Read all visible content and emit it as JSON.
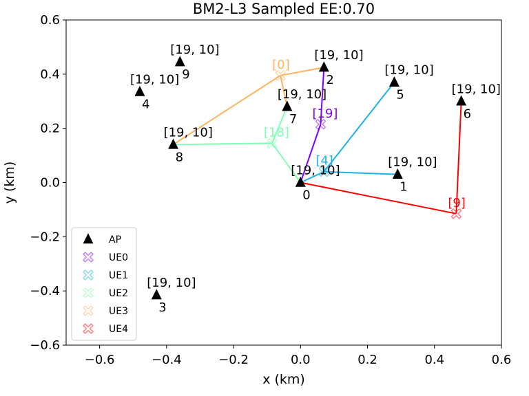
{
  "chart_data": {
    "type": "scatter",
    "title": "BM2-L3 Sampled EE:0.70",
    "xlabel": "x (km)",
    "ylabel": "y (km)",
    "xlim": [
      -0.7,
      0.6
    ],
    "ylim": [
      -0.6,
      0.6
    ],
    "xticks": [
      -0.6,
      -0.4,
      -0.2,
      0.0,
      0.2,
      0.4,
      0.6
    ],
    "yticks": [
      -0.6,
      -0.4,
      -0.2,
      0.0,
      0.2,
      0.4,
      0.6
    ],
    "xtick_labels": [
      "−0.6",
      "−0.4",
      "−0.2",
      "0.0",
      "0.2",
      "0.4",
      "0.6"
    ],
    "ytick_labels": [
      "−0.6",
      "−0.4",
      "−0.2",
      "0.0",
      "0.2",
      "0.4",
      "0.6"
    ],
    "grid": false,
    "legend_position": "bottom-left",
    "access_points": [
      {
        "id": "0",
        "x": 0.0,
        "y": 0.0,
        "note": "[19, 10]"
      },
      {
        "id": "1",
        "x": 0.29,
        "y": 0.03,
        "note": "[19, 10]"
      },
      {
        "id": "2",
        "x": 0.07,
        "y": 0.425,
        "note": "[19, 10]"
      },
      {
        "id": "3",
        "x": -0.43,
        "y": -0.415,
        "note": "[19, 10]"
      },
      {
        "id": "4",
        "x": -0.48,
        "y": 0.335,
        "note": "[19, 10]"
      },
      {
        "id": "5",
        "x": 0.28,
        "y": 0.37,
        "note": "[19, 10]"
      },
      {
        "id": "6",
        "x": 0.48,
        "y": 0.3,
        "note": "[19, 10]"
      },
      {
        "id": "7",
        "x": -0.04,
        "y": 0.28,
        "note": "[19, 10]"
      },
      {
        "id": "8",
        "x": -0.38,
        "y": 0.14,
        "note": "[19, 10]"
      },
      {
        "id": "9",
        "x": -0.36,
        "y": 0.445,
        "note": "[19, 10]"
      }
    ],
    "users": [
      {
        "name": "UE0",
        "x": 0.06,
        "y": 0.215,
        "note": "[19]",
        "color": "#8000ff",
        "links": [
          "2",
          "0"
        ]
      },
      {
        "name": "UE1",
        "x": 0.07,
        "y": 0.04,
        "note": "[4]",
        "color": "#1ab2e6",
        "links": [
          "5",
          "1",
          "0"
        ]
      },
      {
        "name": "UE2",
        "x": -0.085,
        "y": 0.145,
        "note": "[18]",
        "color": "#80ffb4",
        "links": [
          "8",
          "7",
          "0"
        ]
      },
      {
        "name": "UE3",
        "x": -0.06,
        "y": 0.395,
        "note": "[0]",
        "color": "#ffb360",
        "links": [
          "8",
          "7",
          "2"
        ]
      },
      {
        "name": "UE4",
        "x": 0.465,
        "y": -0.115,
        "note": "[9]",
        "color": "#ff0000",
        "links": [
          "6",
          "0"
        ]
      }
    ],
    "legend": [
      {
        "label": "AP",
        "marker": "triangle",
        "color": "#000000"
      },
      {
        "label": "UE0",
        "marker": "x",
        "color": "#8000ff"
      },
      {
        "label": "UE1",
        "marker": "x",
        "color": "#1ab2e6"
      },
      {
        "label": "UE2",
        "marker": "x",
        "color": "#80ffb4"
      },
      {
        "label": "UE3",
        "marker": "x",
        "color": "#ffb360"
      },
      {
        "label": "UE4",
        "marker": "x",
        "color": "#ff0000"
      }
    ]
  }
}
